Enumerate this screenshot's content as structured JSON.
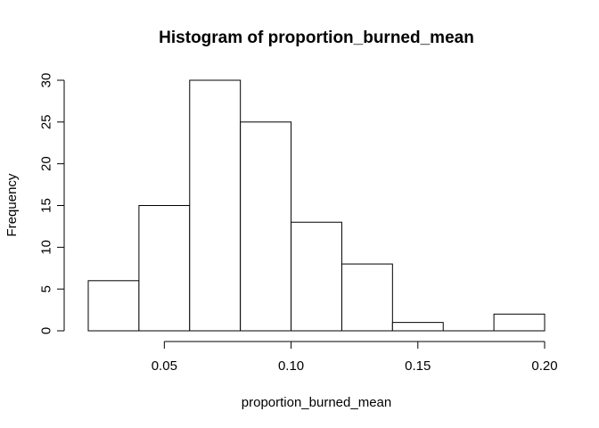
{
  "chart_data": {
    "type": "bar",
    "title": "Histogram of proportion_burned_mean",
    "xlabel": "proportion_burned_mean",
    "ylabel": "Frequency",
    "bins": [
      {
        "from": 0.02,
        "to": 0.04,
        "count": 6
      },
      {
        "from": 0.04,
        "to": 0.06,
        "count": 15
      },
      {
        "from": 0.06,
        "to": 0.08,
        "count": 30
      },
      {
        "from": 0.08,
        "to": 0.1,
        "count": 25
      },
      {
        "from": 0.1,
        "to": 0.12,
        "count": 13
      },
      {
        "from": 0.12,
        "to": 0.14,
        "count": 8
      },
      {
        "from": 0.14,
        "to": 0.16,
        "count": 1
      },
      {
        "from": 0.16,
        "to": 0.18,
        "count": 0
      },
      {
        "from": 0.18,
        "to": 0.2,
        "count": 2
      }
    ],
    "xlim": [
      0.02,
      0.2
    ],
    "ylim": [
      0,
      30
    ],
    "x_ticks": [
      0.05,
      0.1,
      0.15,
      0.2
    ],
    "x_tick_labels": [
      "0.05",
      "0.10",
      "0.15",
      "0.20"
    ],
    "y_ticks": [
      0,
      5,
      10,
      15,
      20,
      25,
      30
    ],
    "y_tick_labels": [
      "0",
      "5",
      "10",
      "15",
      "20",
      "25",
      "30"
    ],
    "grid": false,
    "bar_fill": "#ffffff",
    "bar_stroke": "#000000"
  }
}
